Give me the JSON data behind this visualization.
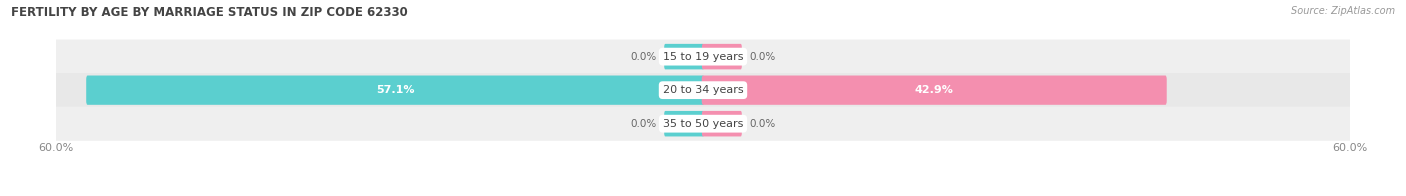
{
  "title": "FERTILITY BY AGE BY MARRIAGE STATUS IN ZIP CODE 62330",
  "source": "Source: ZipAtlas.com",
  "rows": [
    {
      "label": "15 to 19 years",
      "married": 0.0,
      "unmarried": 0.0
    },
    {
      "label": "20 to 34 years",
      "married": 57.1,
      "unmarried": 42.9
    },
    {
      "label": "35 to 50 years",
      "married": 0.0,
      "unmarried": 0.0
    }
  ],
  "max_val": 60.0,
  "married_color": "#5BCFCF",
  "unmarried_color": "#F48FAF",
  "row_bg_color_odd": "#EFEFEF",
  "row_bg_color_even": "#E8E8E8",
  "label_dark": "#444444",
  "label_light": "#666666",
  "axis_label_color": "#888888",
  "title_color": "#444444",
  "figsize": [
    14.06,
    1.96
  ],
  "dpi": 100,
  "zero_stub": 3.5
}
